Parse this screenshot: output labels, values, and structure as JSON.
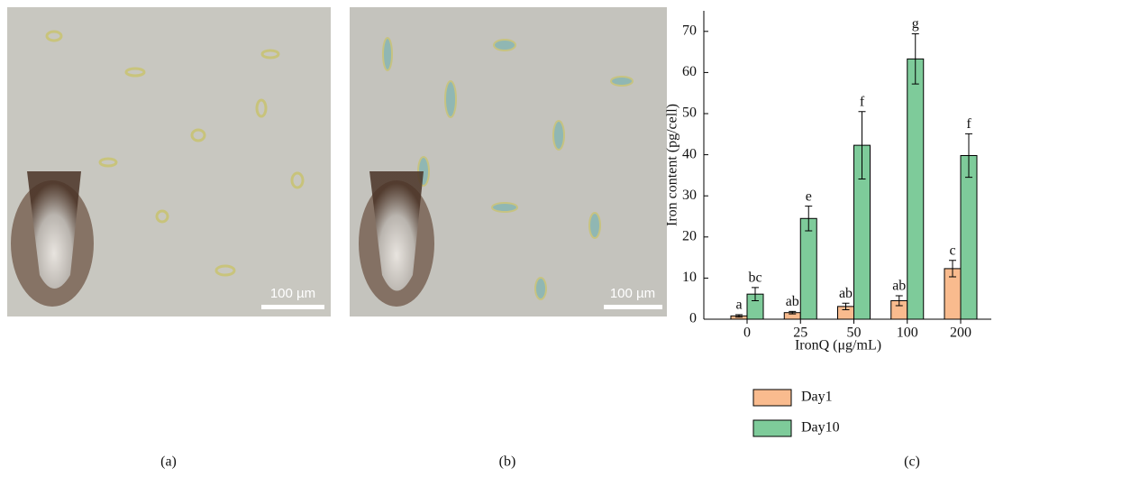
{
  "panels": [
    {
      "label": "(a)",
      "scale_bar": "100 µm"
    },
    {
      "label": "(b)",
      "scale_bar": "100 µm"
    },
    {
      "label": "(c)"
    }
  ],
  "chart_data": {
    "type": "bar",
    "x_label": "IronQ (μg/mL)",
    "y_label": "Iron content (pg/cell)",
    "categories": [
      "0",
      "25",
      "50",
      "100",
      "200"
    ],
    "series": [
      {
        "name": "Day1",
        "color": "#f9bb8e",
        "values": [
          0.8,
          1.6,
          3.1,
          4.5,
          12.3
        ],
        "errors": [
          0.3,
          0.3,
          0.8,
          1.2,
          2.0
        ],
        "letters": [
          "a",
          "ab",
          "ab",
          "ab",
          "c"
        ]
      },
      {
        "name": "Day10",
        "color": "#7ecb9a",
        "values": [
          6.1,
          24.5,
          42.3,
          63.3,
          39.8
        ],
        "errors": [
          1.6,
          3.0,
          8.2,
          6.1,
          5.3
        ],
        "letters": [
          "bc",
          "e",
          "f",
          "g",
          "f"
        ]
      }
    ],
    "ylim": [
      0,
      75
    ],
    "yticks": [
      0,
      10,
      20,
      30,
      40,
      50,
      60,
      70
    ]
  }
}
